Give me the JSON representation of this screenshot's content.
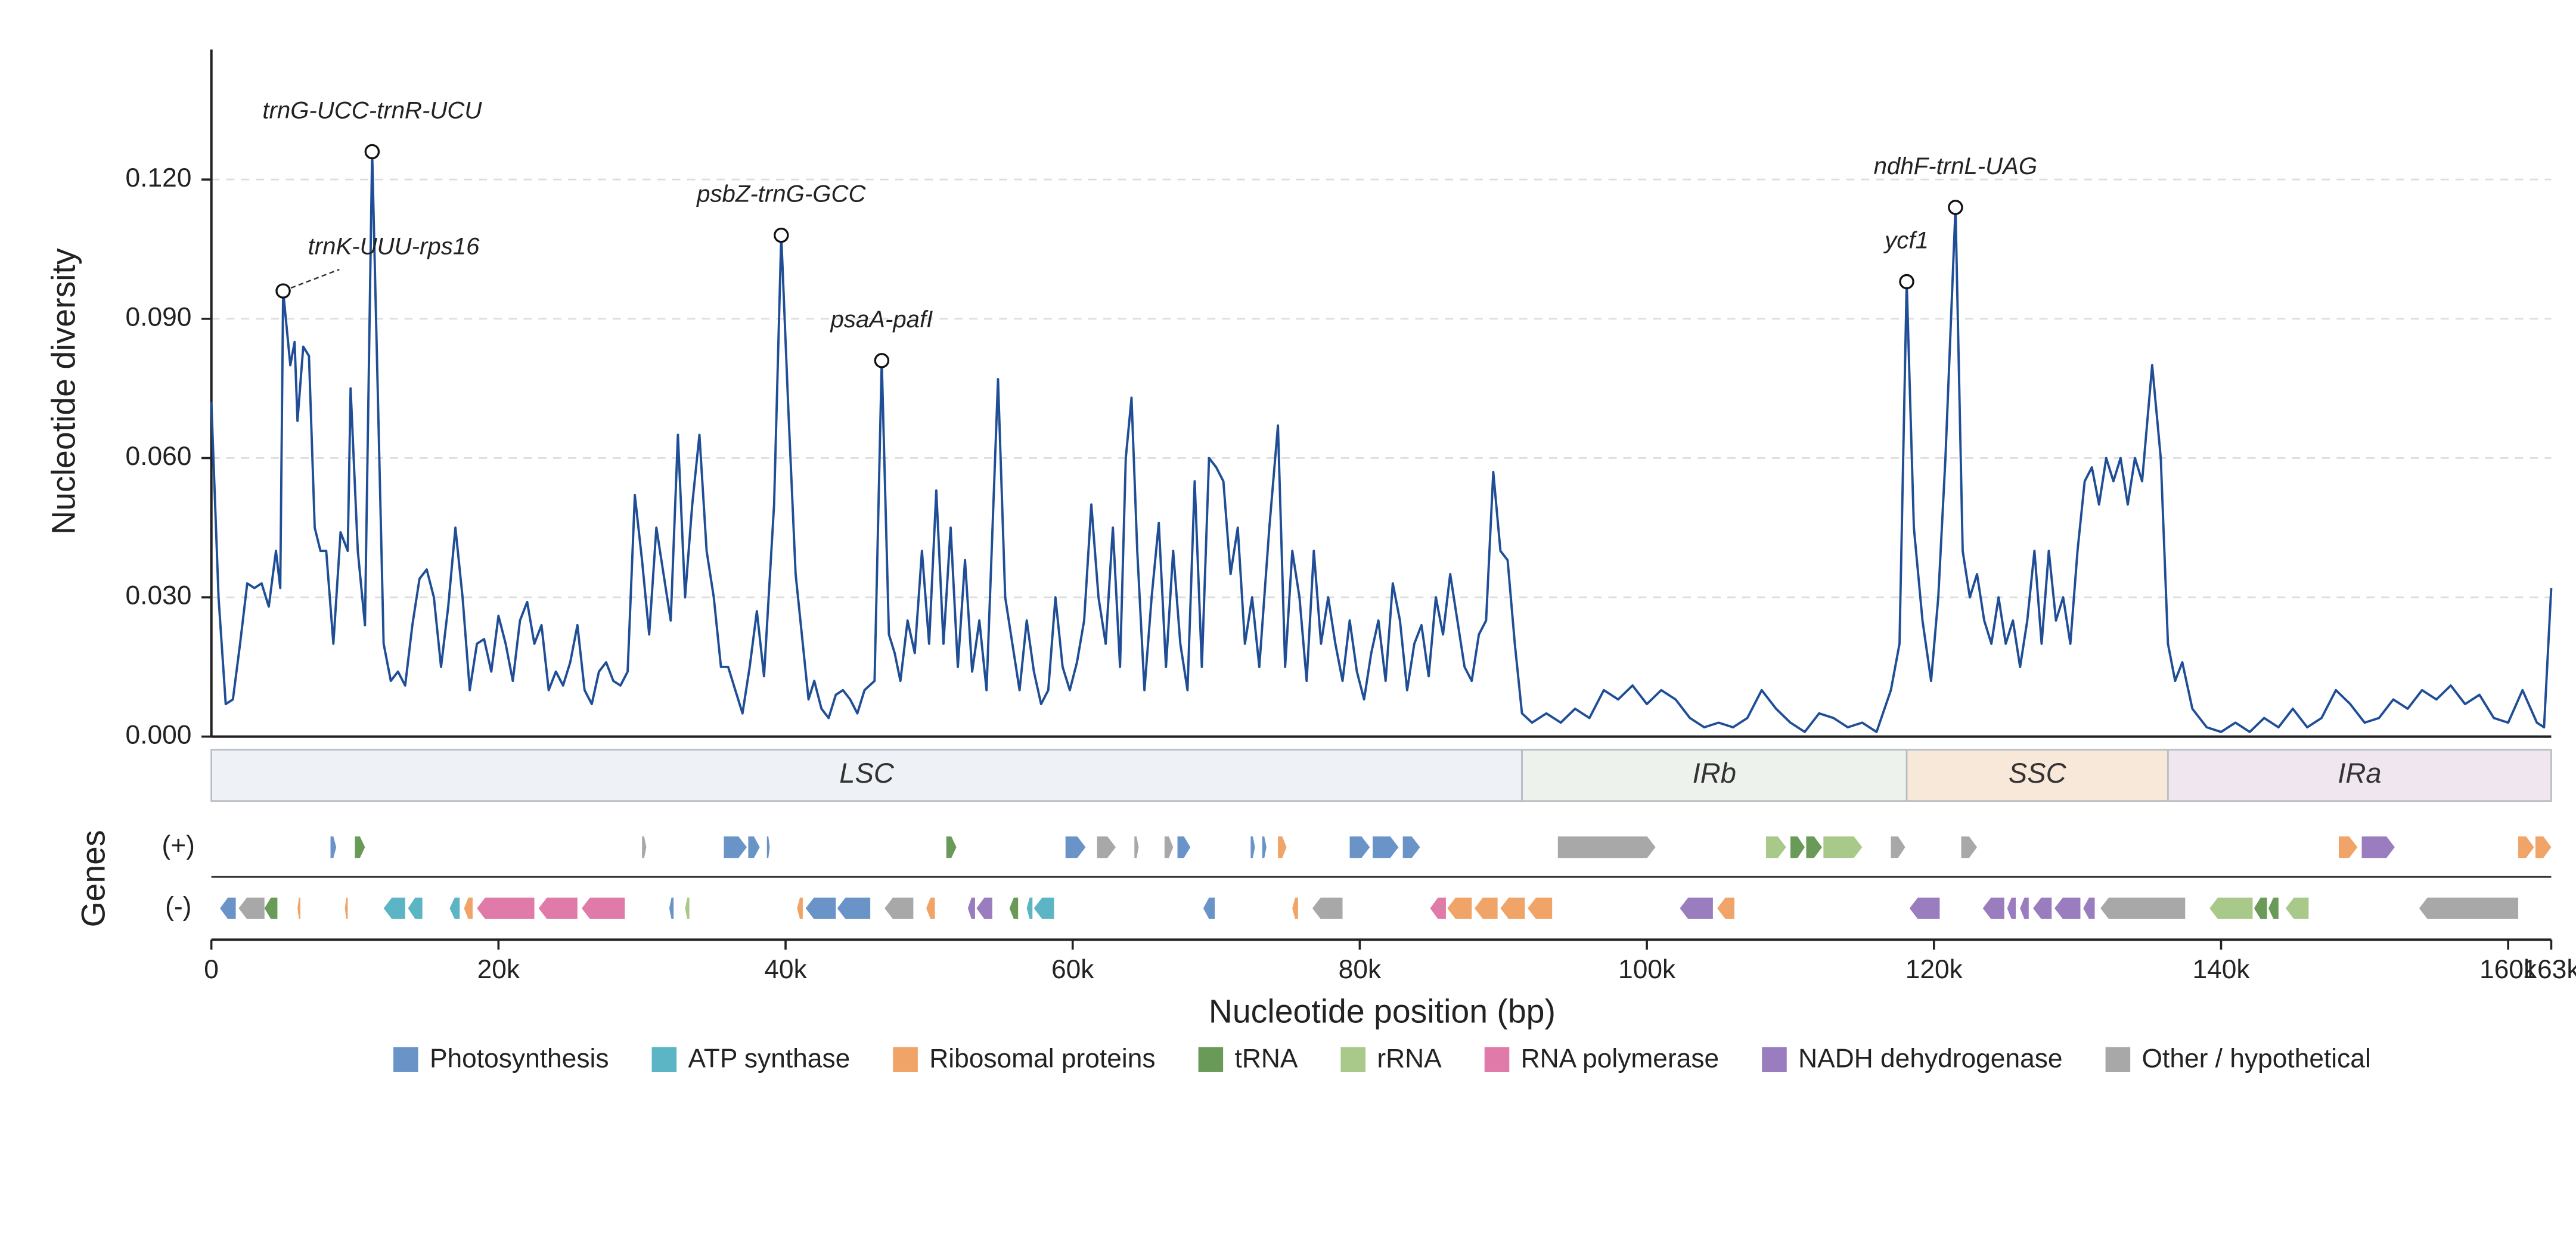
{
  "chart_data": {
    "type": "line",
    "x_label": "Nucleotide position (bp)",
    "y_label": "Nucleotide diversity",
    "track_label": "Genes",
    "color": "#1f4e96",
    "grid": true,
    "xlim": [
      0,
      163000
    ],
    "ylim": [
      0,
      0.148
    ],
    "xticks": [
      0,
      {
        "value": 20000,
        "label": "20k"
      },
      {
        "value": 40000,
        "label": "40k"
      },
      {
        "value": 60000,
        "label": "60k"
      },
      {
        "value": 80000,
        "label": "80k"
      },
      {
        "value": 100000,
        "label": "100k"
      },
      {
        "value": 120000,
        "label": "120k"
      },
      {
        "value": 140000,
        "label": "140k"
      },
      {
        "value": 160000,
        "label": "160k"
      },
      {
        "value": 163000,
        "label": "163k"
      }
    ],
    "yticks": [
      {
        "value": 0,
        "label": "0.000"
      },
      {
        "value": 0.03,
        "label": "0.030"
      },
      {
        "value": 0.06,
        "label": "0.060"
      },
      {
        "value": 0.09,
        "label": "0.090"
      },
      {
        "value": 0.12,
        "label": "0.120"
      }
    ],
    "x": [
      0,
      500,
      1000,
      1500,
      2000,
      2500,
      3000,
      3500,
      4000,
      4500,
      4800,
      5000,
      5500,
      5800,
      6000,
      6400,
      6800,
      7200,
      7600,
      8000,
      8500,
      9000,
      9500,
      9700,
      10200,
      10700,
      11200,
      11700,
      12000,
      12500,
      13000,
      13500,
      14000,
      14500,
      15000,
      15500,
      16000,
      16500,
      17000,
      17500,
      18000,
      18500,
      19000,
      19500,
      20000,
      20500,
      21000,
      21500,
      22000,
      22500,
      23000,
      23500,
      24000,
      24500,
      25000,
      25500,
      26000,
      26500,
      27000,
      27500,
      28000,
      28500,
      29000,
      29500,
      30000,
      30500,
      31000,
      31500,
      32000,
      32500,
      33000,
      33500,
      34000,
      34500,
      35000,
      35500,
      36000,
      36500,
      37000,
      37500,
      38000,
      38500,
      39200,
      39700,
      40200,
      40700,
      41200,
      41600,
      42000,
      42500,
      43000,
      43500,
      44000,
      44500,
      45000,
      45500,
      46200,
      46700,
      47200,
      47600,
      48000,
      48500,
      49000,
      49500,
      50000,
      50500,
      51000,
      51500,
      52000,
      52500,
      53000,
      53500,
      54000,
      54800,
      55300,
      55800,
      56300,
      56800,
      57300,
      57800,
      58300,
      58800,
      59300,
      59800,
      60300,
      60800,
      61300,
      61800,
      62300,
      62800,
      63300,
      63700,
      64100,
      64500,
      65000,
      65500,
      66000,
      66500,
      67000,
      67500,
      68000,
      68500,
      69000,
      69500,
      70000,
      70500,
      71000,
      71500,
      72000,
      72500,
      73000,
      73700,
      74300,
      74800,
      75300,
      75800,
      76300,
      76800,
      77300,
      77800,
      78300,
      78800,
      79300,
      79800,
      80300,
      80800,
      81300,
      81800,
      82300,
      82800,
      83300,
      83800,
      84300,
      84800,
      85300,
      85800,
      86300,
      86800,
      87300,
      87800,
      88300,
      88800,
      89300,
      89800,
      90300,
      90800,
      91300,
      92000,
      93000,
      94000,
      95000,
      96000,
      97000,
      98000,
      99000,
      100000,
      101000,
      102000,
      103000,
      104000,
      105000,
      106000,
      107000,
      108000,
      109000,
      110000,
      111000,
      112000,
      113000,
      114000,
      115000,
      116000,
      117000,
      117600,
      118100,
      118600,
      119200,
      119800,
      120300,
      120800,
      121500,
      122000,
      122500,
      123000,
      123500,
      124000,
      124500,
      125000,
      125500,
      126000,
      126500,
      127000,
      127500,
      128000,
      128500,
      129000,
      129500,
      130000,
      130500,
      131000,
      131500,
      132000,
      132500,
      133000,
      133500,
      134000,
      134500,
      135200,
      135800,
      136300,
      136800,
      137300,
      138000,
      139000,
      140000,
      141000,
      142000,
      143000,
      144000,
      145000,
      146000,
      147000,
      148000,
      149000,
      150000,
      151000,
      152000,
      153000,
      154000,
      155000,
      156000,
      157000,
      158000,
      159000,
      160000,
      161000,
      162000,
      162500,
      163000
    ],
    "values": [
      0.072,
      0.03,
      0.007,
      0.008,
      0.02,
      0.033,
      0.032,
      0.033,
      0.028,
      0.04,
      0.032,
      0.096,
      0.08,
      0.085,
      0.068,
      0.084,
      0.082,
      0.045,
      0.04,
      0.04,
      0.02,
      0.044,
      0.04,
      0.075,
      0.04,
      0.024,
      0.126,
      0.06,
      0.02,
      0.012,
      0.014,
      0.011,
      0.024,
      0.034,
      0.036,
      0.03,
      0.015,
      0.028,
      0.045,
      0.03,
      0.01,
      0.02,
      0.021,
      0.014,
      0.026,
      0.02,
      0.012,
      0.025,
      0.029,
      0.02,
      0.024,
      0.01,
      0.014,
      0.011,
      0.016,
      0.024,
      0.01,
      0.007,
      0.014,
      0.016,
      0.012,
      0.011,
      0.014,
      0.052,
      0.038,
      0.022,
      0.045,
      0.035,
      0.025,
      0.065,
      0.03,
      0.05,
      0.065,
      0.04,
      0.03,
      0.015,
      0.015,
      0.01,
      0.005,
      0.015,
      0.027,
      0.013,
      0.05,
      0.108,
      0.07,
      0.035,
      0.02,
      0.008,
      0.012,
      0.006,
      0.004,
      0.009,
      0.01,
      0.008,
      0.005,
      0.01,
      0.012,
      0.081,
      0.022,
      0.018,
      0.012,
      0.025,
      0.018,
      0.04,
      0.02,
      0.053,
      0.02,
      0.045,
      0.015,
      0.038,
      0.014,
      0.025,
      0.01,
      0.077,
      0.03,
      0.02,
      0.01,
      0.025,
      0.014,
      0.007,
      0.01,
      0.03,
      0.015,
      0.01,
      0.016,
      0.025,
      0.05,
      0.03,
      0.02,
      0.045,
      0.015,
      0.06,
      0.073,
      0.04,
      0.01,
      0.03,
      0.046,
      0.015,
      0.04,
      0.02,
      0.01,
      0.055,
      0.015,
      0.06,
      0.058,
      0.055,
      0.035,
      0.045,
      0.02,
      0.03,
      0.015,
      0.045,
      0.067,
      0.015,
      0.04,
      0.03,
      0.012,
      0.04,
      0.02,
      0.03,
      0.02,
      0.012,
      0.025,
      0.014,
      0.008,
      0.018,
      0.025,
      0.012,
      0.033,
      0.025,
      0.01,
      0.02,
      0.024,
      0.013,
      0.03,
      0.022,
      0.035,
      0.025,
      0.015,
      0.012,
      0.022,
      0.025,
      0.057,
      0.04,
      0.038,
      0.02,
      0.005,
      0.003,
      0.005,
      0.003,
      0.006,
      0.004,
      0.01,
      0.008,
      0.011,
      0.007,
      0.01,
      0.008,
      0.004,
      0.002,
      0.003,
      0.002,
      0.004,
      0.01,
      0.006,
      0.003,
      0.001,
      0.005,
      0.004,
      0.002,
      0.003,
      0.001,
      0.01,
      0.02,
      0.098,
      0.045,
      0.025,
      0.012,
      0.03,
      0.06,
      0.114,
      0.04,
      0.03,
      0.035,
      0.025,
      0.02,
      0.03,
      0.02,
      0.025,
      0.015,
      0.025,
      0.04,
      0.02,
      0.04,
      0.025,
      0.03,
      0.02,
      0.04,
      0.055,
      0.058,
      0.05,
      0.06,
      0.055,
      0.06,
      0.05,
      0.06,
      0.055,
      0.08,
      0.06,
      0.02,
      0.012,
      0.016,
      0.006,
      0.002,
      0.001,
      0.003,
      0.001,
      0.004,
      0.002,
      0.006,
      0.002,
      0.004,
      0.01,
      0.007,
      0.003,
      0.004,
      0.008,
      0.006,
      0.01,
      0.008,
      0.011,
      0.007,
      0.009,
      0.004,
      0.003,
      0.01,
      0.003,
      0.002,
      0.032
    ],
    "annotations": [
      {
        "text": "trnG-UCC-trnR-UCU",
        "x": 11200,
        "y": 0.126
      },
      {
        "text": "trnK-UUU-rps16",
        "x": 5000,
        "y": 0.096
      },
      {
        "text": "psbZ-trnG-GCC",
        "x": 39700,
        "y": 0.108
      },
      {
        "text": "psaA-pafI",
        "x": 46700,
        "y": 0.081
      },
      {
        "text": "ycf1",
        "x": 118100,
        "y": 0.098
      },
      {
        "text": "ndhF-trnL-UAG",
        "x": 121500,
        "y": 0.114
      }
    ],
    "regions": [
      {
        "name": "LSC",
        "start": 0,
        "end": 91300,
        "color": "#eef2f6"
      },
      {
        "name": "IRb",
        "start": 91300,
        "end": 118100,
        "color": "#edf3ec"
      },
      {
        "name": "SSC",
        "start": 118100,
        "end": 136300,
        "color": "#f8e8da"
      },
      {
        "name": "IRa",
        "start": 136300,
        "end": 163000,
        "color": "#f0e6f0"
      }
    ],
    "gene_groups": [
      {
        "name": "Photosynthesis",
        "color": "#6a94c8"
      },
      {
        "name": "ATP synthase",
        "color": "#5bb5c4"
      },
      {
        "name": "Ribosomal proteins",
        "color": "#f0a468"
      },
      {
        "name": "tRNA",
        "color": "#6a9a58"
      },
      {
        "name": "rRNA",
        "color": "#a9c98a"
      },
      {
        "name": "RNA polymerase",
        "color": "#e07aa8"
      },
      {
        "name": "NADH dehydrogenase",
        "color": "#9a7dbf"
      },
      {
        "name": "Other / hypothetical",
        "color": "#a8a8a8"
      }
    ],
    "tracks": [
      {
        "label": "(+)",
        "genes": [
          [
            8300,
            8700,
            0
          ],
          [
            10000,
            10700,
            3
          ],
          [
            30000,
            30300,
            7
          ],
          [
            35700,
            37300,
            0
          ],
          [
            37400,
            38200,
            0
          ],
          [
            38700,
            38900,
            0
          ],
          [
            51200,
            51900,
            3
          ],
          [
            59500,
            60900,
            0
          ],
          [
            61700,
            63000,
            7
          ],
          [
            64300,
            64600,
            7
          ],
          [
            66400,
            67000,
            7
          ],
          [
            67300,
            68200,
            0
          ],
          [
            72400,
            72700,
            0
          ],
          [
            73200,
            73500,
            0
          ],
          [
            74300,
            74900,
            2
          ],
          [
            79300,
            80700,
            0
          ],
          [
            80900,
            82700,
            0
          ],
          [
            83000,
            84200,
            0
          ],
          [
            93800,
            100600,
            7
          ],
          [
            108300,
            109700,
            4
          ],
          [
            110000,
            111000,
            3
          ],
          [
            111100,
            112200,
            3
          ],
          [
            112300,
            115000,
            4
          ],
          [
            117000,
            118000,
            7
          ],
          [
            121900,
            123000,
            7
          ],
          [
            148200,
            149500,
            2
          ],
          [
            149800,
            152100,
            6
          ],
          [
            160700,
            161800,
            2
          ],
          [
            161900,
            163000,
            2
          ]
        ]
      },
      {
        "label": "(-)",
        "genes": [
          [
            600,
            1700,
            0
          ],
          [
            1900,
            3700,
            7
          ],
          [
            3700,
            4600,
            3
          ],
          [
            6000,
            6200,
            2
          ],
          [
            9300,
            9500,
            2
          ],
          [
            12000,
            13500,
            1
          ],
          [
            13700,
            14700,
            1
          ],
          [
            16600,
            17300,
            1
          ],
          [
            17600,
            18200,
            2
          ],
          [
            18500,
            22500,
            5
          ],
          [
            22800,
            25500,
            5
          ],
          [
            25800,
            28800,
            5
          ],
          [
            31900,
            32200,
            0
          ],
          [
            33000,
            33300,
            4
          ],
          [
            40800,
            41200,
            2
          ],
          [
            41400,
            43500,
            0
          ],
          [
            43600,
            45900,
            0
          ],
          [
            46900,
            48900,
            7
          ],
          [
            49800,
            50400,
            2
          ],
          [
            52700,
            53200,
            6
          ],
          [
            53300,
            54400,
            6
          ],
          [
            55600,
            56200,
            3
          ],
          [
            56800,
            57200,
            1
          ],
          [
            57300,
            58700,
            1
          ],
          [
            69100,
            69900,
            0
          ],
          [
            75300,
            75700,
            2
          ],
          [
            76700,
            78800,
            7
          ],
          [
            84900,
            86000,
            5
          ],
          [
            86100,
            87800,
            2
          ],
          [
            88000,
            89600,
            2
          ],
          [
            89800,
            91500,
            2
          ],
          [
            91700,
            93400,
            2
          ],
          [
            102300,
            104600,
            6
          ],
          [
            104900,
            106100,
            2
          ],
          [
            118300,
            120400,
            6
          ],
          [
            123400,
            124900,
            6
          ],
          [
            125100,
            125700,
            6
          ],
          [
            126000,
            126600,
            6
          ],
          [
            126900,
            128200,
            6
          ],
          [
            128400,
            130200,
            6
          ],
          [
            130400,
            131200,
            6
          ],
          [
            131600,
            137500,
            7
          ],
          [
            139200,
            142200,
            4
          ],
          [
            142300,
            143200,
            3
          ],
          [
            143300,
            144000,
            3
          ],
          [
            144500,
            146100,
            4
          ],
          [
            153800,
            160700,
            7
          ]
        ]
      }
    ]
  }
}
